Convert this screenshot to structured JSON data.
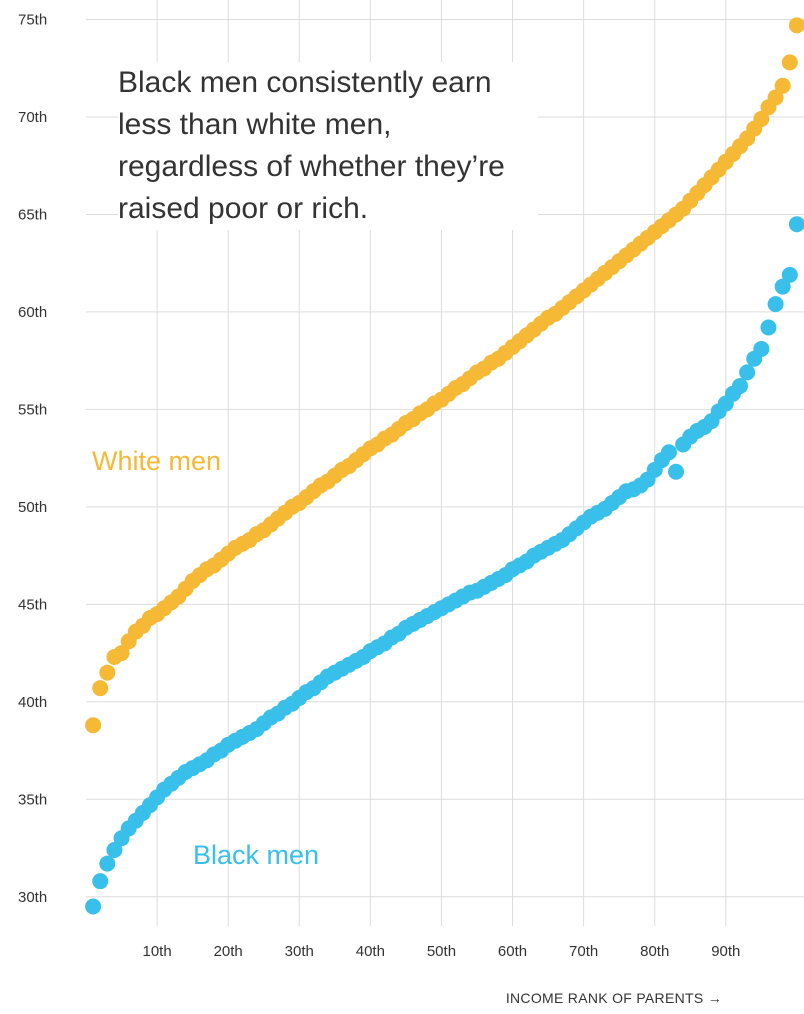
{
  "chart_data": {
    "type": "scatter",
    "xlabel": "INCOME RANK OF PARENTS →",
    "ylabel": "",
    "annotation": "Black men consistently earn less than white men, regardless of whether they’re raised poor or rich.",
    "x_ticks": [
      "10th",
      "20th",
      "30th",
      "40th",
      "50th",
      "60th",
      "70th",
      "80th",
      "90th"
    ],
    "y_ticks": [
      "30th",
      "35th",
      "40th",
      "45th",
      "50th",
      "55th",
      "60th",
      "65th",
      "70th",
      "75th"
    ],
    "xlim": [
      0,
      101
    ],
    "ylim": [
      28.5,
      76
    ],
    "grid": true,
    "colors": {
      "white": "#f5b936",
      "black": "#38c0ea",
      "grid": "#dddddd"
    },
    "series": [
      {
        "name": "White men",
        "color": "#f5b936",
        "x": [
          1,
          2,
          3,
          4,
          5,
          6,
          7,
          8,
          9,
          10,
          11,
          12,
          13,
          14,
          15,
          16,
          17,
          18,
          19,
          20,
          21,
          22,
          23,
          24,
          25,
          26,
          27,
          28,
          29,
          30,
          31,
          32,
          33,
          34,
          35,
          36,
          37,
          38,
          39,
          40,
          41,
          42,
          43,
          44,
          45,
          46,
          47,
          48,
          49,
          50,
          51,
          52,
          53,
          54,
          55,
          56,
          57,
          58,
          59,
          60,
          61,
          62,
          63,
          64,
          65,
          66,
          67,
          68,
          69,
          70,
          71,
          72,
          73,
          74,
          75,
          76,
          77,
          78,
          79,
          80,
          81,
          82,
          83,
          84,
          85,
          86,
          87,
          88,
          89,
          90,
          91,
          92,
          93,
          94,
          95,
          96,
          97,
          98,
          99,
          100
        ],
        "values": [
          38.8,
          40.7,
          41.5,
          42.3,
          42.5,
          43.1,
          43.6,
          43.9,
          44.3,
          44.5,
          44.8,
          45.1,
          45.4,
          45.8,
          46.2,
          46.5,
          46.8,
          47.0,
          47.3,
          47.6,
          47.9,
          48.1,
          48.3,
          48.6,
          48.8,
          49.1,
          49.4,
          49.7,
          50.0,
          50.2,
          50.5,
          50.8,
          51.1,
          51.3,
          51.6,
          51.9,
          52.1,
          52.4,
          52.7,
          53.0,
          53.2,
          53.5,
          53.7,
          54.0,
          54.3,
          54.5,
          54.8,
          55.0,
          55.3,
          55.5,
          55.8,
          56.1,
          56.3,
          56.6,
          56.9,
          57.1,
          57.4,
          57.6,
          57.9,
          58.2,
          58.5,
          58.8,
          59.1,
          59.4,
          59.7,
          59.9,
          60.2,
          60.5,
          60.8,
          61.1,
          61.4,
          61.7,
          62.0,
          62.3,
          62.6,
          62.9,
          63.2,
          63.5,
          63.8,
          64.1,
          64.4,
          64.7,
          65.0,
          65.3,
          65.7,
          66.1,
          66.5,
          66.9,
          67.3,
          67.7,
          68.1,
          68.5,
          68.9,
          69.4,
          69.9,
          70.5,
          71.0,
          71.6,
          72.8,
          74.7
        ]
      },
      {
        "name": "Black men",
        "color": "#38c0ea",
        "x": [
          1,
          2,
          3,
          4,
          5,
          6,
          7,
          8,
          9,
          10,
          11,
          12,
          13,
          14,
          15,
          16,
          17,
          18,
          19,
          20,
          21,
          22,
          23,
          24,
          25,
          26,
          27,
          28,
          29,
          30,
          31,
          32,
          33,
          34,
          35,
          36,
          37,
          38,
          39,
          40,
          41,
          42,
          43,
          44,
          45,
          46,
          47,
          48,
          49,
          50,
          51,
          52,
          53,
          54,
          55,
          56,
          57,
          58,
          59,
          60,
          61,
          62,
          63,
          64,
          65,
          66,
          67,
          68,
          69,
          70,
          71,
          72,
          73,
          74,
          75,
          76,
          77,
          78,
          79,
          80,
          81,
          82,
          83,
          84,
          85,
          86,
          87,
          88,
          89,
          90,
          91,
          92,
          93,
          94,
          95,
          96,
          97,
          98,
          99,
          100
        ],
        "values": [
          29.5,
          30.8,
          31.7,
          32.4,
          33.0,
          33.5,
          33.9,
          34.3,
          34.7,
          35.1,
          35.5,
          35.8,
          36.1,
          36.4,
          36.6,
          36.8,
          37.0,
          37.3,
          37.5,
          37.8,
          38.0,
          38.2,
          38.4,
          38.6,
          38.9,
          39.2,
          39.4,
          39.7,
          39.9,
          40.2,
          40.5,
          40.7,
          41.0,
          41.3,
          41.5,
          41.7,
          41.9,
          42.1,
          42.3,
          42.6,
          42.8,
          43.0,
          43.3,
          43.5,
          43.8,
          44.0,
          44.2,
          44.4,
          44.6,
          44.8,
          45.0,
          45.2,
          45.4,
          45.6,
          45.7,
          45.9,
          46.1,
          46.3,
          46.5,
          46.8,
          47.0,
          47.2,
          47.5,
          47.7,
          47.9,
          48.1,
          48.3,
          48.6,
          48.9,
          49.2,
          49.5,
          49.7,
          49.9,
          50.2,
          50.5,
          50.8,
          50.9,
          51.1,
          51.4,
          51.9,
          52.4,
          52.8,
          51.8,
          53.2,
          53.6,
          53.9,
          54.1,
          54.4,
          54.9,
          55.3,
          55.8,
          56.2,
          56.9,
          57.6,
          58.1,
          59.2,
          60.4,
          61.3,
          61.9,
          64.5
        ]
      }
    ]
  }
}
